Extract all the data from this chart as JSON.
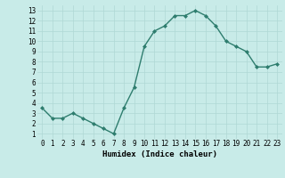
{
  "x": [
    0,
    1,
    2,
    3,
    4,
    5,
    6,
    7,
    8,
    9,
    10,
    11,
    12,
    13,
    14,
    15,
    16,
    17,
    18,
    19,
    20,
    21,
    22,
    23
  ],
  "y": [
    3.5,
    2.5,
    2.5,
    3.0,
    2.5,
    2.0,
    1.5,
    1.0,
    3.5,
    5.5,
    9.5,
    11.0,
    11.5,
    12.5,
    12.5,
    13.0,
    12.5,
    11.5,
    10.0,
    9.5,
    9.0,
    7.5,
    7.5,
    7.8
  ],
  "line_color": "#2e7d6e",
  "marker": "D",
  "marker_size": 2.0,
  "bg_color": "#c8ebe8",
  "grid_color": "#afd8d4",
  "xlabel": "Humidex (Indice chaleur)",
  "xlim": [
    -0.5,
    23.5
  ],
  "ylim": [
    0.5,
    13.5
  ],
  "xticks": [
    0,
    1,
    2,
    3,
    4,
    5,
    6,
    7,
    8,
    9,
    10,
    11,
    12,
    13,
    14,
    15,
    16,
    17,
    18,
    19,
    20,
    21,
    22,
    23
  ],
  "yticks": [
    1,
    2,
    3,
    4,
    5,
    6,
    7,
    8,
    9,
    10,
    11,
    12,
    13
  ],
  "tick_fontsize": 5.5,
  "xlabel_fontsize": 6.5,
  "linewidth": 1.0
}
